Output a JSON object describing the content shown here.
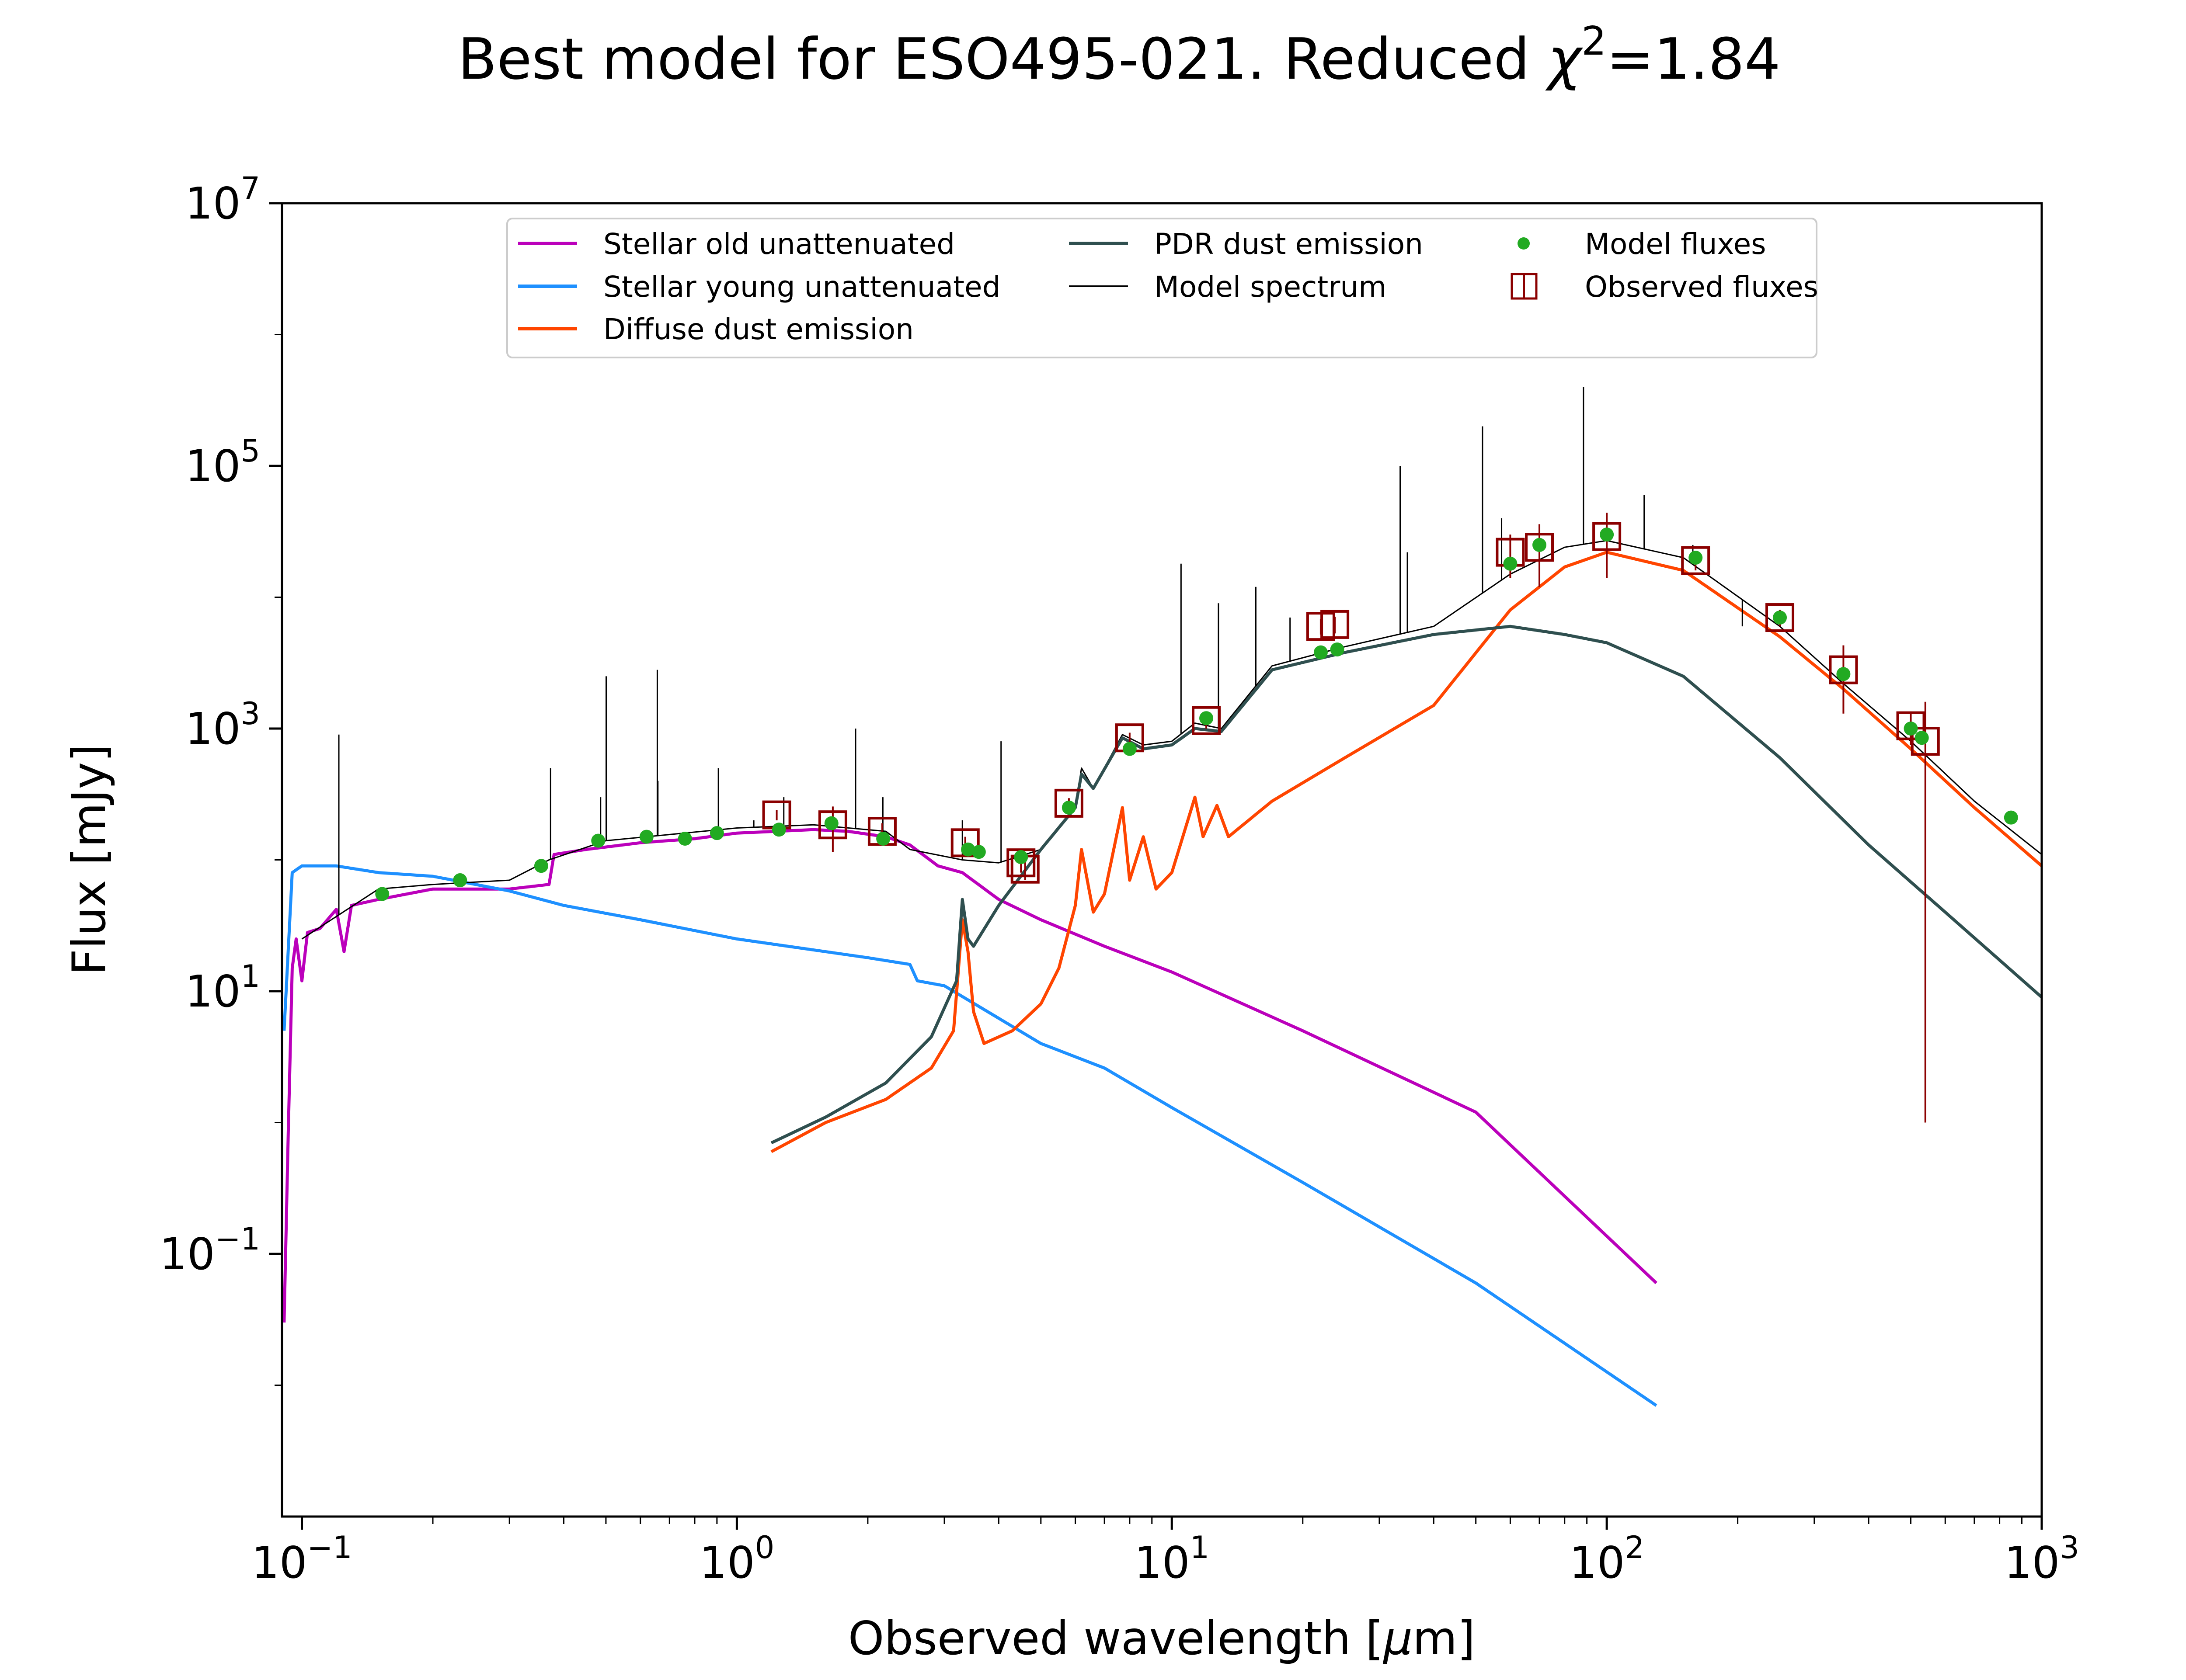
{
  "chart_data": {
    "type": "line",
    "title_main": "Best model for ESO495-021. Reduced ",
    "title_chi": "χ",
    "title_chi_exp": "2",
    "title_value": "=1.84",
    "xlabel_main": "Observed wavelength [",
    "xlabel_mu": "μ",
    "xlabel_unit": "m]",
    "ylabel": "Flux [mJy]",
    "x_scale": "log",
    "y_scale": "log",
    "xlim": [
      0.09,
      1000
    ],
    "ylim": [
      0.001,
      10000000
    ],
    "x_ticks": [
      {
        "value": 0.1,
        "base": "10",
        "exp": "−1"
      },
      {
        "value": 1,
        "base": "10",
        "exp": "0"
      },
      {
        "value": 10,
        "base": "10",
        "exp": "1"
      },
      {
        "value": 100,
        "base": "10",
        "exp": "2"
      },
      {
        "value": 1000,
        "base": "10",
        "exp": "3"
      }
    ],
    "y_ticks": [
      {
        "value": 0.1,
        "base": "10",
        "exp": "−1"
      },
      {
        "value": 10,
        "base": "10",
        "exp": "1"
      },
      {
        "value": 1000,
        "base": "10",
        "exp": "3"
      },
      {
        "value": 100000,
        "base": "10",
        "exp": "5"
      },
      {
        "value": 10000000,
        "base": "10",
        "exp": "7"
      }
    ],
    "legend_position": "top-center",
    "legend": [
      {
        "label": "Stellar old unattenuated",
        "color": "#BB00BB",
        "marker": "line"
      },
      {
        "label": "Stellar young unattenuated",
        "color": "#1E90FF",
        "marker": "line"
      },
      {
        "label": "Diffuse dust emission",
        "color": "#FF4500",
        "marker": "line"
      },
      {
        "label": "PDR dust emission",
        "color": "#2F4F4F",
        "marker": "line"
      },
      {
        "label": "Model spectrum",
        "color": "#000000",
        "marker": "thin-line"
      },
      {
        "label": "Model fluxes",
        "color": "#22AA22",
        "marker": "dot"
      },
      {
        "label": "Observed fluxes",
        "color": "#8B0000",
        "marker": "square-errorbar"
      }
    ],
    "series": [
      {
        "name": "Stellar old unattenuated",
        "color": "#BB00BB",
        "width": 7,
        "points": [
          [
            0.091,
            0.03
          ],
          [
            0.093,
            0.8
          ],
          [
            0.095,
            15
          ],
          [
            0.097,
            25
          ],
          [
            0.1,
            12
          ],
          [
            0.103,
            28
          ],
          [
            0.11,
            30
          ],
          [
            0.12,
            42
          ],
          [
            0.125,
            20
          ],
          [
            0.13,
            45
          ],
          [
            0.15,
            50
          ],
          [
            0.2,
            60
          ],
          [
            0.3,
            60
          ],
          [
            0.37,
            65
          ],
          [
            0.38,
            110
          ],
          [
            0.45,
            120
          ],
          [
            0.6,
            135
          ],
          [
            0.8,
            145
          ],
          [
            1.0,
            160
          ],
          [
            1.5,
            170
          ],
          [
            1.8,
            165
          ],
          [
            2.2,
            150
          ],
          [
            2.5,
            130
          ],
          [
            2.9,
            90
          ],
          [
            3.3,
            80
          ],
          [
            4.0,
            50
          ],
          [
            5.0,
            35
          ],
          [
            7.0,
            22
          ],
          [
            10.0,
            14
          ],
          [
            20.0,
            5
          ],
          [
            50.0,
            1.2
          ],
          [
            130.0,
            0.06
          ]
        ]
      },
      {
        "name": "Stellar young unattenuated",
        "color": "#1E90FF",
        "width": 7,
        "points": [
          [
            0.091,
            5
          ],
          [
            0.095,
            80
          ],
          [
            0.1,
            90
          ],
          [
            0.12,
            90
          ],
          [
            0.15,
            80
          ],
          [
            0.2,
            75
          ],
          [
            0.3,
            58
          ],
          [
            0.4,
            45
          ],
          [
            0.6,
            35
          ],
          [
            1.0,
            25
          ],
          [
            2.0,
            18
          ],
          [
            2.5,
            16
          ],
          [
            2.6,
            12
          ],
          [
            3.0,
            11
          ],
          [
            5.0,
            4
          ],
          [
            7.0,
            2.6
          ],
          [
            10.0,
            1.3
          ],
          [
            20.0,
            0.35
          ],
          [
            50.0,
            0.06
          ],
          [
            130.0,
            0.007
          ]
        ]
      },
      {
        "name": "Diffuse dust emission",
        "color": "#FF4500",
        "width": 7,
        "points": [
          [
            1.2,
            0.6
          ],
          [
            1.6,
            1.0
          ],
          [
            2.2,
            1.5
          ],
          [
            2.8,
            2.6
          ],
          [
            3.15,
            5
          ],
          [
            3.3,
            35
          ],
          [
            3.4,
            20
          ],
          [
            3.5,
            7
          ],
          [
            3.7,
            4
          ],
          [
            4.3,
            5
          ],
          [
            5.0,
            8
          ],
          [
            5.5,
            15
          ],
          [
            6.0,
            45
          ],
          [
            6.2,
            120
          ],
          [
            6.6,
            40
          ],
          [
            7.0,
            55
          ],
          [
            7.7,
            250
          ],
          [
            8.0,
            70
          ],
          [
            8.6,
            150
          ],
          [
            9.2,
            60
          ],
          [
            10.0,
            80
          ],
          [
            11.3,
            300
          ],
          [
            11.8,
            150
          ],
          [
            12.7,
            260
          ],
          [
            13.5,
            150
          ],
          [
            17.0,
            280
          ],
          [
            25.0,
            600
          ],
          [
            40.0,
            1500
          ],
          [
            60.0,
            8000
          ],
          [
            80.0,
            17000
          ],
          [
            100.0,
            22000
          ],
          [
            150.0,
            16000
          ],
          [
            250.0,
            5000
          ],
          [
            350.0,
            2000
          ],
          [
            500.0,
            700
          ],
          [
            700.0,
            250
          ],
          [
            1000.0,
            90
          ]
        ]
      },
      {
        "name": "PDR dust emission",
        "color": "#2F4F4F",
        "width": 7,
        "points": [
          [
            1.2,
            0.7
          ],
          [
            1.6,
            1.1
          ],
          [
            2.2,
            2
          ],
          [
            2.8,
            4.5
          ],
          [
            3.2,
            12
          ],
          [
            3.3,
            50
          ],
          [
            3.4,
            25
          ],
          [
            3.5,
            22
          ],
          [
            4.0,
            45
          ],
          [
            5.0,
            120
          ],
          [
            6.0,
            250
          ],
          [
            6.2,
            450
          ],
          [
            6.6,
            350
          ],
          [
            7.7,
            850
          ],
          [
            8.6,
            700
          ],
          [
            10.0,
            750
          ],
          [
            11.3,
            1000
          ],
          [
            13.0,
            950
          ],
          [
            17.0,
            2800
          ],
          [
            25.0,
            3800
          ],
          [
            40.0,
            5200
          ],
          [
            60.0,
            6000
          ],
          [
            80.0,
            5200
          ],
          [
            100.0,
            4500
          ],
          [
            150.0,
            2500
          ],
          [
            250.0,
            600
          ],
          [
            400.0,
            130
          ],
          [
            600.0,
            40
          ],
          [
            1000.0,
            9
          ]
        ]
      },
      {
        "name": "Model spectrum",
        "color": "#000000",
        "width": 3,
        "points": [
          [
            0.1,
            25
          ],
          [
            0.15,
            60
          ],
          [
            0.2,
            65
          ],
          [
            0.3,
            70
          ],
          [
            0.37,
            100
          ],
          [
            0.5,
            140
          ],
          [
            1.0,
            175
          ],
          [
            1.5,
            185
          ],
          [
            2.2,
            165
          ],
          [
            2.5,
            120
          ],
          [
            3.3,
            100
          ],
          [
            4.0,
            95
          ],
          [
            5.0,
            120
          ],
          [
            6.0,
            250
          ],
          [
            6.2,
            500
          ],
          [
            6.6,
            350
          ],
          [
            7.7,
            900
          ],
          [
            8.6,
            750
          ],
          [
            10.0,
            800
          ],
          [
            11.3,
            1100
          ],
          [
            13.0,
            1000
          ],
          [
            17.0,
            3000
          ],
          [
            25.0,
            4200
          ],
          [
            40.0,
            6000
          ],
          [
            60.0,
            15000
          ],
          [
            80.0,
            24000
          ],
          [
            100.0,
            27000
          ],
          [
            150.0,
            20000
          ],
          [
            250.0,
            6000
          ],
          [
            350.0,
            2200
          ],
          [
            500.0,
            800
          ],
          [
            700.0,
            280
          ],
          [
            1000.0,
            110
          ]
        ]
      }
    ],
    "emission_lines": [
      [
        0.1216,
        900
      ],
      [
        0.373,
        500
      ],
      [
        0.4861,
        300
      ],
      [
        0.5007,
        2500
      ],
      [
        0.6563,
        2800
      ],
      [
        0.6583,
        400
      ],
      [
        0.9069,
        500
      ],
      [
        1.0938,
        200
      ],
      [
        1.282,
        300
      ],
      [
        1.875,
        1000
      ],
      [
        2.166,
        300
      ],
      [
        3.3,
        200
      ],
      [
        4.05,
        800
      ],
      [
        10.5,
        18000
      ],
      [
        12.8,
        9000
      ],
      [
        15.6,
        12000
      ],
      [
        18.7,
        7000
      ],
      [
        33.5,
        100000
      ],
      [
        34.8,
        22000
      ],
      [
        51.8,
        200000
      ],
      [
        57.3,
        40000
      ],
      [
        88.4,
        400000
      ],
      [
        121.9,
        60000
      ],
      [
        157.7,
        25000
      ],
      [
        205.0,
        6000
      ]
    ],
    "model_fluxes": [
      [
        0.153,
        55
      ],
      [
        0.231,
        70
      ],
      [
        0.355,
        90
      ],
      [
        0.48,
        140
      ],
      [
        0.62,
        150
      ],
      [
        0.76,
        145
      ],
      [
        0.9,
        160
      ],
      [
        1.25,
        170
      ],
      [
        1.65,
        190
      ],
      [
        2.17,
        145
      ],
      [
        3.4,
        120
      ],
      [
        3.6,
        115
      ],
      [
        4.5,
        105
      ],
      [
        5.8,
        250
      ],
      [
        8.0,
        700
      ],
      [
        12.0,
        1200
      ],
      [
        22.0,
        3800
      ],
      [
        24.0,
        4000
      ],
      [
        60.0,
        18000
      ],
      [
        70.0,
        25000
      ],
      [
        100.0,
        30000
      ],
      [
        160.0,
        20000
      ],
      [
        250.0,
        7000
      ],
      [
        350.0,
        2600
      ],
      [
        500.0,
        1000
      ],
      [
        530.0,
        850
      ],
      [
        850.0,
        210
      ]
    ],
    "observed_fluxes": [
      [
        1.235,
        220,
        20
      ],
      [
        1.662,
        185,
        70
      ],
      [
        2.159,
        165,
        25
      ],
      [
        3.35,
        135,
        15
      ],
      [
        4.5,
        95,
        15
      ],
      [
        4.6,
        85,
        15
      ],
      [
        5.8,
        270,
        25
      ],
      [
        8.0,
        850,
        80
      ],
      [
        12.0,
        1150,
        150
      ],
      [
        22.0,
        6000,
        800
      ],
      [
        23.7,
        6200,
        900
      ],
      [
        60.0,
        22000,
        8000
      ],
      [
        70.0,
        24000,
        12000
      ],
      [
        100.0,
        29000,
        15000
      ],
      [
        160.0,
        19000,
        3000
      ],
      [
        250.0,
        7000,
        1000
      ],
      [
        350.0,
        2800,
        1500
      ],
      [
        500.0,
        1050,
        300
      ],
      [
        540.0,
        800,
        799
      ]
    ]
  }
}
